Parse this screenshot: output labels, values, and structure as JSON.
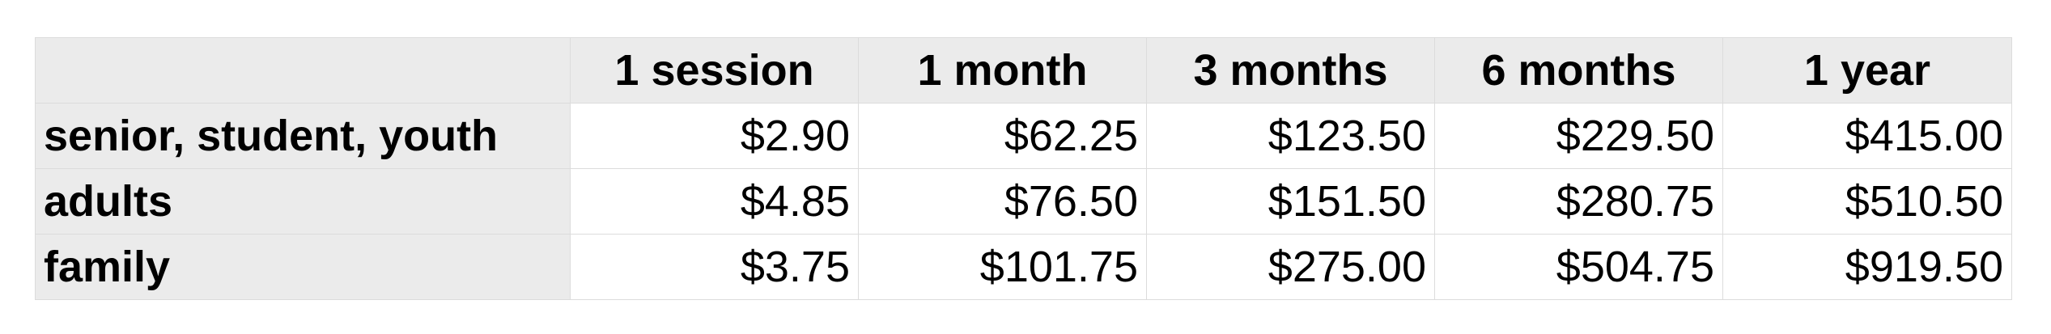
{
  "table": {
    "columns": [
      "1 session",
      "1 month",
      "3 months",
      "6 months",
      "1 year"
    ],
    "rows": [
      {
        "label": "senior, student, youth",
        "values": [
          "$2.90",
          "$62.25",
          "$123.50",
          "$229.50",
          "$415.00"
        ]
      },
      {
        "label": "adults",
        "values": [
          "$4.85",
          "$76.50",
          "$151.50",
          "$280.75",
          "$510.50"
        ]
      },
      {
        "label": "family",
        "values": [
          "$3.75",
          "$101.75",
          "$275.00",
          "$504.75",
          "$919.50"
        ]
      }
    ]
  },
  "colors": {
    "header_background": "#ebebeb",
    "cell_background": "#ffffff",
    "grid_line": "#dcdcdc"
  }
}
